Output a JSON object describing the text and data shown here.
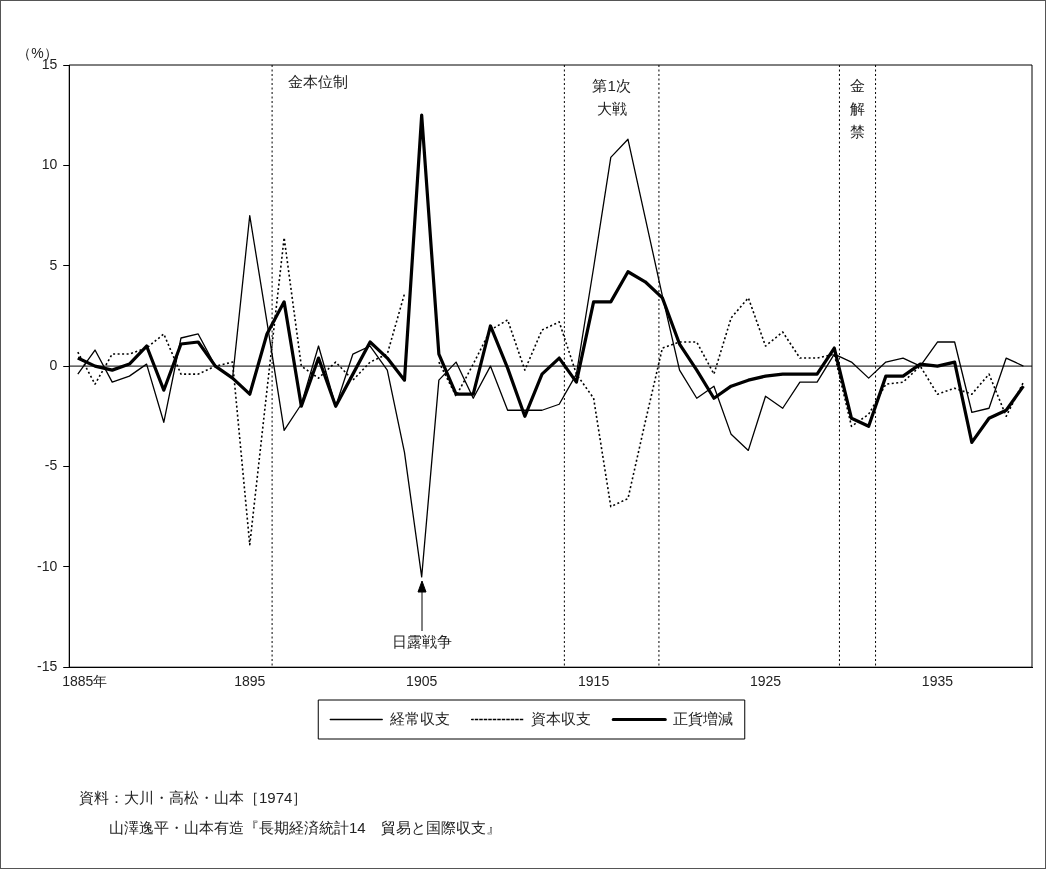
{
  "chart_data": {
    "type": "line",
    "ylabel": "（%）",
    "x": [
      1885,
      1886,
      1887,
      1888,
      1889,
      1890,
      1891,
      1892,
      1893,
      1894,
      1895,
      1896,
      1897,
      1898,
      1899,
      1900,
      1901,
      1902,
      1903,
      1904,
      1905,
      1906,
      1907,
      1908,
      1909,
      1910,
      1911,
      1912,
      1913,
      1914,
      1915,
      1916,
      1917,
      1918,
      1919,
      1920,
      1921,
      1922,
      1923,
      1924,
      1925,
      1926,
      1927,
      1928,
      1929,
      1930,
      1931,
      1932,
      1933,
      1934,
      1935,
      1936,
      1937,
      1938,
      1939,
      1940
    ],
    "series": [
      {
        "name": "経常収支",
        "color": "#000000",
        "line_style": "solid",
        "values": [
          -0.4,
          0.8,
          -0.8,
          -0.5,
          0.1,
          -2.8,
          1.4,
          1.6,
          0.0,
          -0.6,
          7.5,
          2.2,
          -3.2,
          -1.9,
          1.0,
          -2.0,
          0.6,
          1.0,
          -0.2,
          -4.3,
          -10.5,
          -0.7,
          0.2,
          -1.6,
          0.0,
          -2.2,
          -2.2,
          -2.2,
          -1.9,
          -0.4,
          4.9,
          10.4,
          11.3,
          7.4,
          3.5,
          -0.2,
          -1.6,
          -1.0,
          -3.4,
          -4.2,
          -1.5,
          -2.1,
          -0.8,
          -0.8,
          0.6,
          0.2,
          -0.6,
          0.2,
          0.4,
          0.0,
          1.2,
          1.2,
          -2.3,
          -2.1,
          0.4,
          0.0
        ]
      },
      {
        "name": "資本収支",
        "color": "#000000",
        "line_style": "dotted",
        "values": [
          0.7,
          -0.9,
          0.6,
          0.6,
          0.9,
          1.6,
          -0.4,
          -0.4,
          0.0,
          0.2,
          -8.9,
          -1.2,
          6.4,
          0.0,
          -0.6,
          0.2,
          -0.7,
          0.2,
          0.6,
          3.6,
          null,
          0.2,
          -1.5,
          0.1,
          1.8,
          2.3,
          -0.2,
          1.8,
          2.2,
          -0.4,
          -1.6,
          -7.0,
          -6.6,
          -2.8,
          0.9,
          1.2,
          1.2,
          -0.4,
          2.4,
          3.4,
          1.0,
          1.7,
          0.4,
          0.4,
          0.6,
          -3.0,
          -2.4,
          -0.9,
          -0.8,
          0.0,
          -1.4,
          -1.1,
          -1.4,
          -0.4,
          -2.5,
          -0.8
        ]
      },
      {
        "name": "正貨増減",
        "color": "#000000",
        "line_style": "solid",
        "values": [
          0.4,
          0.0,
          -0.2,
          0.1,
          1.0,
          -1.2,
          1.1,
          1.2,
          0.0,
          -0.6,
          -1.4,
          1.6,
          3.2,
          -2.0,
          0.4,
          -2.0,
          -0.4,
          1.2,
          0.4,
          -0.7,
          12.5,
          0.6,
          -1.4,
          -1.4,
          2.0,
          -0.1,
          -2.5,
          -0.4,
          0.4,
          -0.8,
          3.2,
          3.2,
          4.7,
          4.2,
          3.4,
          1.1,
          -0.2,
          -1.6,
          -1.0,
          -0.7,
          -0.5,
          -0.4,
          -0.4,
          -0.4,
          0.9,
          -2.6,
          -3.0,
          -0.5,
          -0.5,
          0.1,
          0.0,
          0.2,
          -3.8,
          -2.6,
          -2.2,
          -1.0
        ]
      }
    ],
    "xlim": [
      1884.5,
      1940.5
    ],
    "xticks": [
      {
        "value": 1885,
        "label": "1885年"
      },
      1895,
      1905,
      1915,
      1925,
      1935
    ],
    "ylim": [
      -15,
      15
    ],
    "yticks": [
      -15,
      -10,
      -5,
      0,
      5,
      10,
      15
    ],
    "ref_lines": [
      {
        "axis": "y",
        "value": 0,
        "line_style": "solid",
        "color": "#000000"
      },
      {
        "axis": "x",
        "value": 1896.3,
        "line_style": "dotted",
        "color": "#000000",
        "label": "金本位制"
      },
      {
        "axis": "x",
        "value": 1913.3,
        "line_style": "dotted",
        "color": "#000000",
        "label": "第1次大戦"
      },
      {
        "axis": "x",
        "value": 1918.8,
        "line_style": "dotted",
        "color": "#000000"
      },
      {
        "axis": "x",
        "value": 1929.3,
        "line_style": "dotted",
        "color": "#000000",
        "label": "金解禁"
      },
      {
        "axis": "x",
        "value": 1931.4,
        "line_style": "dotted",
        "color": "#000000"
      }
    ],
    "annotations": [
      "日露戦争",
      "資料：大川・高松・山本［1974］",
      "山澤逸平・山本有造『長期経済統計14　貿易と国際収支』"
    ],
    "legend": "bottom",
    "marker": "none",
    "grid": false
  }
}
